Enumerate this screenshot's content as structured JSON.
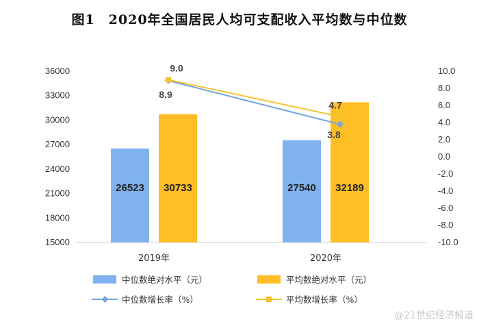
{
  "title": "图1　2020年全国居民人均可支配收入平均数与中位数",
  "watermark": "@21世纪经济报道",
  "colors": {
    "median_bar": "#7fb2ee",
    "mean_bar": "#ffbe26",
    "median_line": "#75a6dd",
    "mean_line": "#f4c430",
    "axis": "#d0d0d0"
  },
  "chart_data": {
    "type": "bar",
    "categories": [
      "2019年",
      "2020年"
    ],
    "series": [
      {
        "name": "中位数绝对水平（元）",
        "kind": "bar",
        "axis": "left",
        "values": [
          26523,
          27540
        ],
        "labels": [
          "26523",
          "27540"
        ]
      },
      {
        "name": "平均数绝对水平（元）",
        "kind": "bar",
        "axis": "left",
        "values": [
          30733,
          32189
        ],
        "labels": [
          "30733",
          "32189"
        ]
      },
      {
        "name": "中位数增长率（%）",
        "kind": "line",
        "axis": "right",
        "values": [
          8.9,
          3.8
        ],
        "labels": [
          "8.9",
          "3.8"
        ]
      },
      {
        "name": "平均数增长率（%）",
        "kind": "line",
        "axis": "right",
        "values": [
          9.0,
          4.7
        ],
        "labels": [
          "9.0",
          "4.7"
        ]
      }
    ],
    "y_left": {
      "min": 15000,
      "max": 36000,
      "ticks": [
        "36000",
        "33000",
        "30000",
        "27000",
        "24000",
        "21000",
        "18000",
        "15000"
      ]
    },
    "y_right": {
      "min": -10.0,
      "max": 10.0,
      "ticks": [
        "10.0",
        "8.0",
        "6.0",
        "4.0",
        "2.0",
        "0.0",
        "-2.0",
        "-4.0",
        "-6.0",
        "-8.0",
        "-10.0"
      ]
    },
    "legend": [
      "中位数绝对水平（元）",
      "平均数绝对水平（元）",
      "中位数增长率（%）",
      "平均数增长率（%）"
    ],
    "legend_position": "bottom"
  }
}
